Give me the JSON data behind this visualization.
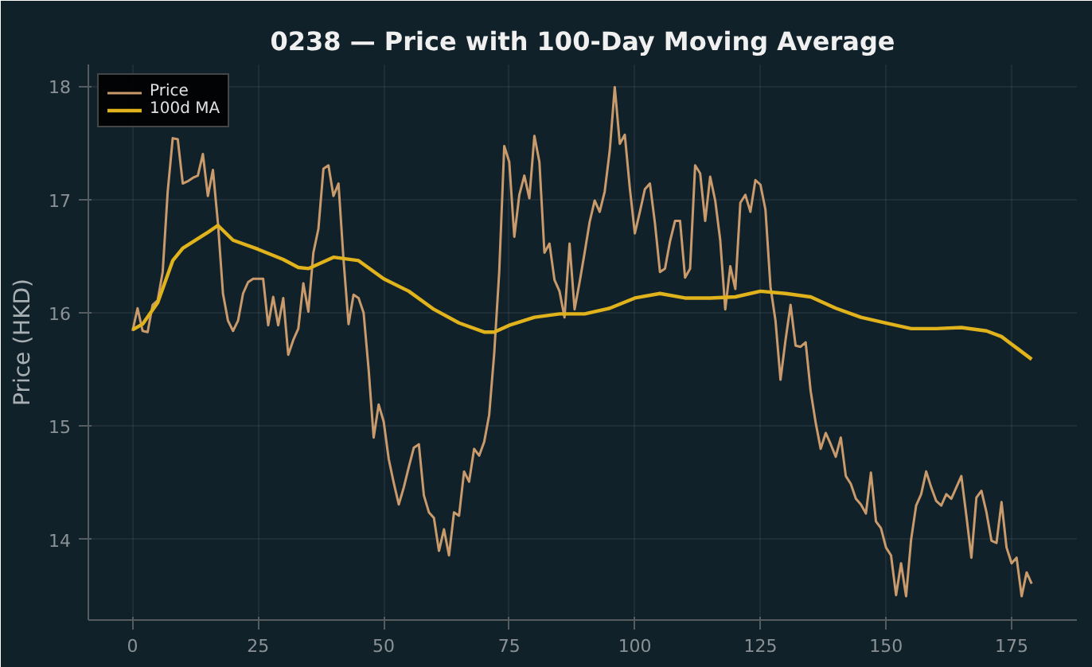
{
  "chart_data": {
    "type": "line",
    "title": "0238 — Price with 100-Day Moving Average",
    "ylabel": "Price (HKD)",
    "xlim": [
      -8.8,
      188
    ],
    "xticks": [
      0,
      25,
      50,
      75,
      100,
      125,
      150,
      175
    ],
    "ylim": [
      13.29,
      18.19
    ],
    "yticks": [
      14,
      15,
      16,
      17,
      18
    ],
    "grid": true,
    "legend": "top left",
    "line_style": "solid",
    "series": [
      {
        "name": "Price",
        "color": "#c99a6b",
        "x": [
          0,
          1,
          2,
          3,
          4,
          5,
          6,
          7,
          8,
          9,
          10,
          11,
          12,
          13,
          14,
          15,
          16,
          17,
          18,
          19,
          20,
          21,
          22,
          23,
          24,
          25,
          26,
          27,
          28,
          29,
          30,
          31,
          32,
          33,
          34,
          35,
          36,
          37,
          38,
          39,
          40,
          41,
          42,
          43,
          44,
          45,
          46,
          47,
          48,
          49,
          50,
          51,
          52,
          53,
          54,
          55,
          56,
          57,
          58,
          59,
          60,
          61,
          62,
          63,
          64,
          65,
          66,
          67,
          68,
          69,
          70,
          71,
          72,
          73,
          74,
          75,
          76,
          77,
          78,
          79,
          80,
          81,
          82,
          83,
          84,
          85,
          86,
          87,
          88,
          89,
          90,
          91,
          92,
          93,
          94,
          95,
          96,
          97,
          98,
          99,
          100,
          101,
          102,
          103,
          104,
          105,
          106,
          107,
          108,
          109,
          110,
          111,
          112,
          113,
          114,
          115,
          116,
          117,
          118,
          119,
          120,
          121,
          122,
          123,
          124,
          125,
          126,
          127,
          128,
          129,
          130,
          131,
          132,
          133,
          134,
          135,
          136,
          137,
          138,
          139,
          140,
          141,
          142,
          143,
          144,
          145,
          146,
          147,
          148,
          149,
          150,
          151,
          152,
          153,
          154,
          155,
          156,
          157,
          158,
          159,
          160,
          161,
          162,
          163,
          164,
          165,
          166,
          167,
          168,
          169,
          170,
          171,
          172,
          173,
          174,
          175,
          176,
          177,
          178,
          179
        ],
        "values": [
          15.84,
          16.04,
          15.84,
          15.83,
          16.07,
          16.11,
          16.36,
          17.07,
          17.54,
          17.53,
          17.14,
          17.16,
          17.19,
          17.21,
          17.4,
          17.03,
          17.26,
          16.79,
          16.17,
          15.93,
          15.84,
          15.93,
          16.17,
          16.27,
          16.3,
          16.3,
          16.3,
          15.89,
          16.14,
          15.89,
          16.13,
          15.63,
          15.76,
          15.86,
          16.26,
          16.01,
          16.53,
          16.74,
          17.27,
          17.3,
          17.03,
          17.14,
          16.47,
          15.9,
          16.16,
          16.13,
          16.0,
          15.5,
          14.9,
          15.19,
          15.04,
          14.71,
          14.5,
          14.31,
          14.46,
          14.64,
          14.81,
          14.84,
          14.39,
          14.24,
          14.19,
          13.9,
          14.09,
          13.86,
          14.24,
          14.21,
          14.6,
          14.51,
          14.8,
          14.74,
          14.86,
          15.1,
          15.64,
          16.36,
          17.47,
          17.33,
          16.67,
          17.04,
          17.21,
          17.01,
          17.56,
          17.33,
          16.53,
          16.61,
          16.29,
          16.19,
          15.96,
          16.61,
          16.03,
          16.27,
          16.53,
          16.8,
          16.99,
          16.89,
          17.07,
          17.43,
          17.99,
          17.49,
          17.57,
          17.1,
          16.7,
          16.89,
          17.09,
          17.14,
          16.79,
          16.36,
          16.39,
          16.63,
          16.81,
          16.81,
          16.31,
          16.39,
          17.3,
          17.23,
          16.81,
          17.2,
          16.99,
          16.64,
          16.03,
          16.41,
          16.21,
          16.97,
          17.04,
          16.89,
          17.17,
          17.13,
          16.91,
          16.23,
          15.93,
          15.41,
          15.76,
          16.07,
          15.71,
          15.7,
          15.74,
          15.31,
          15.03,
          14.8,
          14.94,
          14.84,
          14.73,
          14.9,
          14.56,
          14.49,
          14.36,
          14.31,
          14.23,
          14.59,
          14.16,
          14.1,
          13.93,
          13.86,
          13.51,
          13.79,
          13.5,
          14.0,
          14.3,
          14.4,
          14.6,
          14.46,
          14.34,
          14.3,
          14.4,
          14.36,
          14.46,
          14.56,
          14.21,
          13.84,
          14.37,
          14.43,
          14.24,
          13.99,
          13.97,
          14.33,
          13.93,
          13.79,
          13.84,
          13.5,
          13.71,
          13.61
        ]
      },
      {
        "name": "100d MA",
        "color": "#e0b21c",
        "x": [
          0,
          2,
          5,
          8,
          10,
          15,
          17,
          20,
          25,
          30,
          33,
          35,
          40,
          45,
          50,
          55,
          60,
          65,
          70,
          72,
          75,
          80,
          85,
          90,
          95,
          100,
          105,
          110,
          115,
          120,
          125,
          130,
          135,
          140,
          145,
          150,
          155,
          160,
          165,
          170,
          173,
          176,
          179
        ],
        "values": [
          15.85,
          15.9,
          16.09,
          16.46,
          16.57,
          16.71,
          16.77,
          16.64,
          16.56,
          16.47,
          16.4,
          16.39,
          16.49,
          16.46,
          16.3,
          16.19,
          16.03,
          15.91,
          15.83,
          15.83,
          15.89,
          15.96,
          15.99,
          15.99,
          16.04,
          16.13,
          16.17,
          16.13,
          16.13,
          16.14,
          16.19,
          16.17,
          16.14,
          16.04,
          15.96,
          15.91,
          15.86,
          15.86,
          15.87,
          15.84,
          15.79,
          15.69,
          15.59
        ]
      }
    ]
  }
}
